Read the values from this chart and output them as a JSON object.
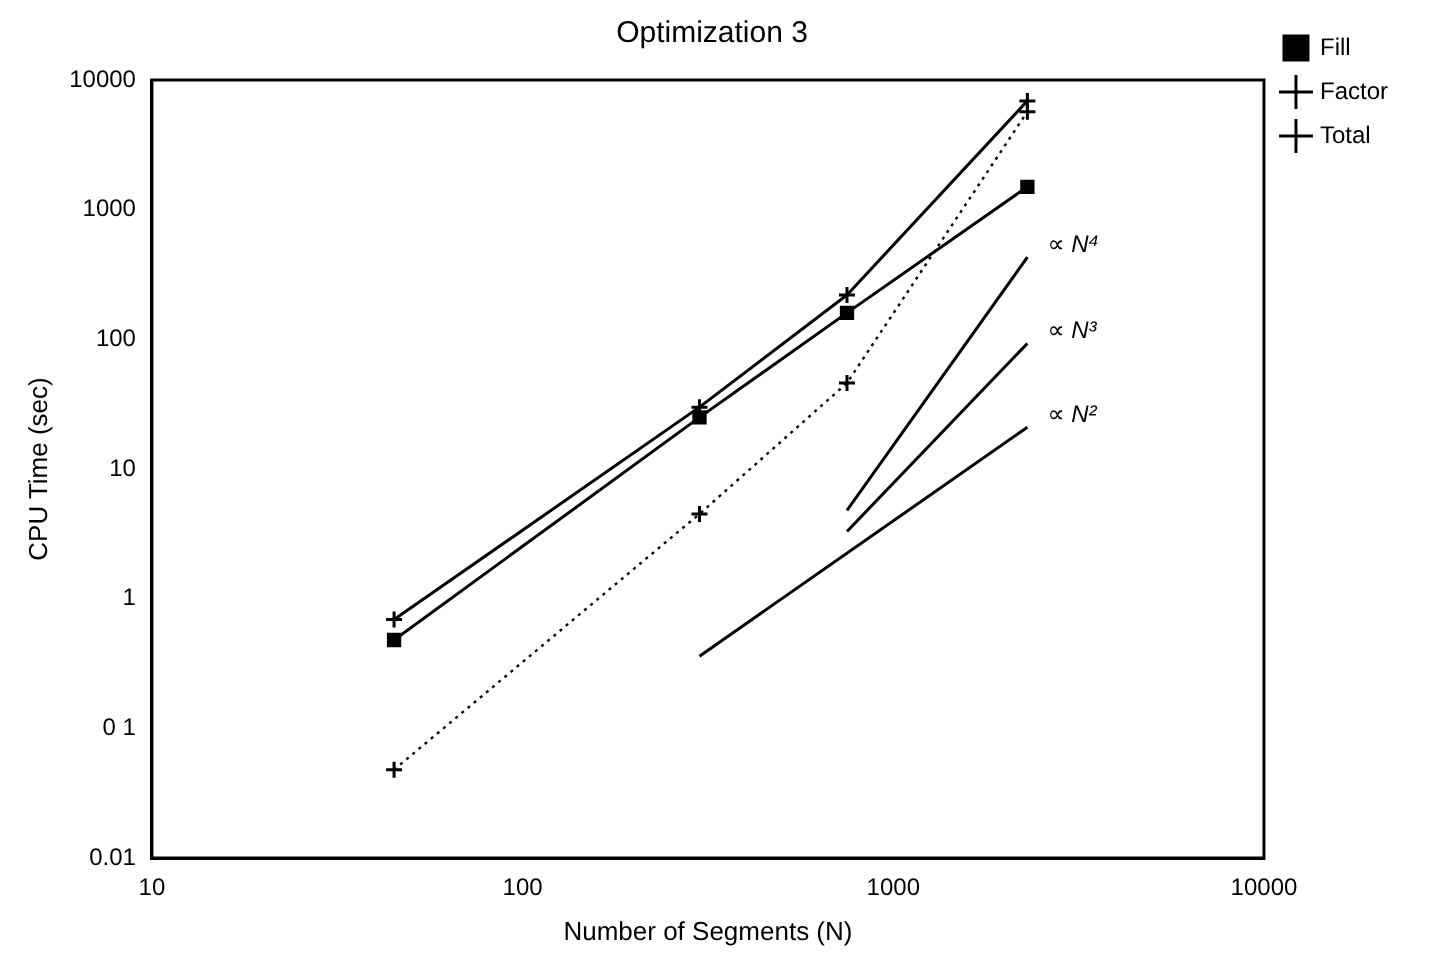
{
  "chart_data": {
    "type": "line",
    "title": "Optimization 3",
    "xlabel": "Number of Segments (N)",
    "ylabel": "CPU Time (sec)",
    "log": "xy",
    "xlim": [
      10,
      10000
    ],
    "xticks": [
      10,
      100,
      1000,
      10000
    ],
    "ylim": [
      0.01,
      10000
    ],
    "yticks": [
      0.01,
      {
        "value": 0.1,
        "label": "0 1"
      },
      1,
      10,
      100,
      1000,
      10000
    ],
    "grid": false,
    "legend": "top right",
    "x": [
      45,
      300,
      750,
      2300
    ],
    "series": [
      {
        "name": "Fill",
        "color": "#000000",
        "values": [
          0.48,
          25,
          160,
          1500
        ],
        "marker": "square",
        "line_style": "solid"
      },
      {
        "name": "Factor",
        "color": "#000000",
        "values": [
          0.048,
          4.5,
          46,
          5700
        ],
        "marker": "cross",
        "line_style": "dotted"
      },
      {
        "name": "Total",
        "color": "#000000",
        "values": [
          0.69,
          30,
          220,
          6900
        ],
        "marker": "cross",
        "line_style": "solid"
      },
      {
        "type": "line",
        "color": "#000000",
        "x": [
          750,
          2300
        ],
        "values": [
          4.8,
          430
        ],
        "marker": "none",
        "line_style": "solid"
      },
      {
        "type": "line",
        "color": "#000000",
        "x": [
          750,
          2300
        ],
        "values": [
          3.3,
          93
        ],
        "marker": "none",
        "line_style": "solid"
      },
      {
        "type": "line",
        "color": "#000000",
        "x": [
          300,
          2300
        ],
        "values": [
          0.36,
          21
        ],
        "marker": "none",
        "line_style": "solid"
      }
    ],
    "annotations": [
      "∝ N⁴",
      "∝ N³",
      "∝ N²"
    ]
  }
}
